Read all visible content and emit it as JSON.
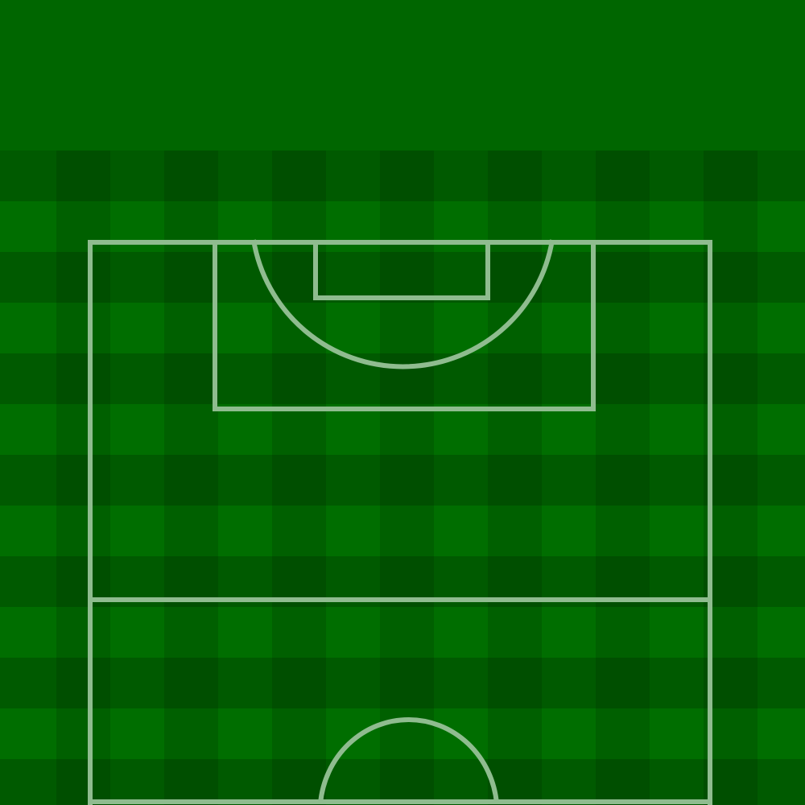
{
  "scene": {
    "type": "football-pitch-half",
    "colors": {
      "top_band": "#006600",
      "stripe_light": "#006e00",
      "stripe_dark": "#005a00",
      "grid_overlay": "#000000",
      "line": "#8fbc8f"
    },
    "elements": [
      "touchline-left",
      "touchline-right",
      "goal-line",
      "penalty-area",
      "goal-area",
      "penalty-arc",
      "halfway-line",
      "center-circle-arc"
    ]
  }
}
